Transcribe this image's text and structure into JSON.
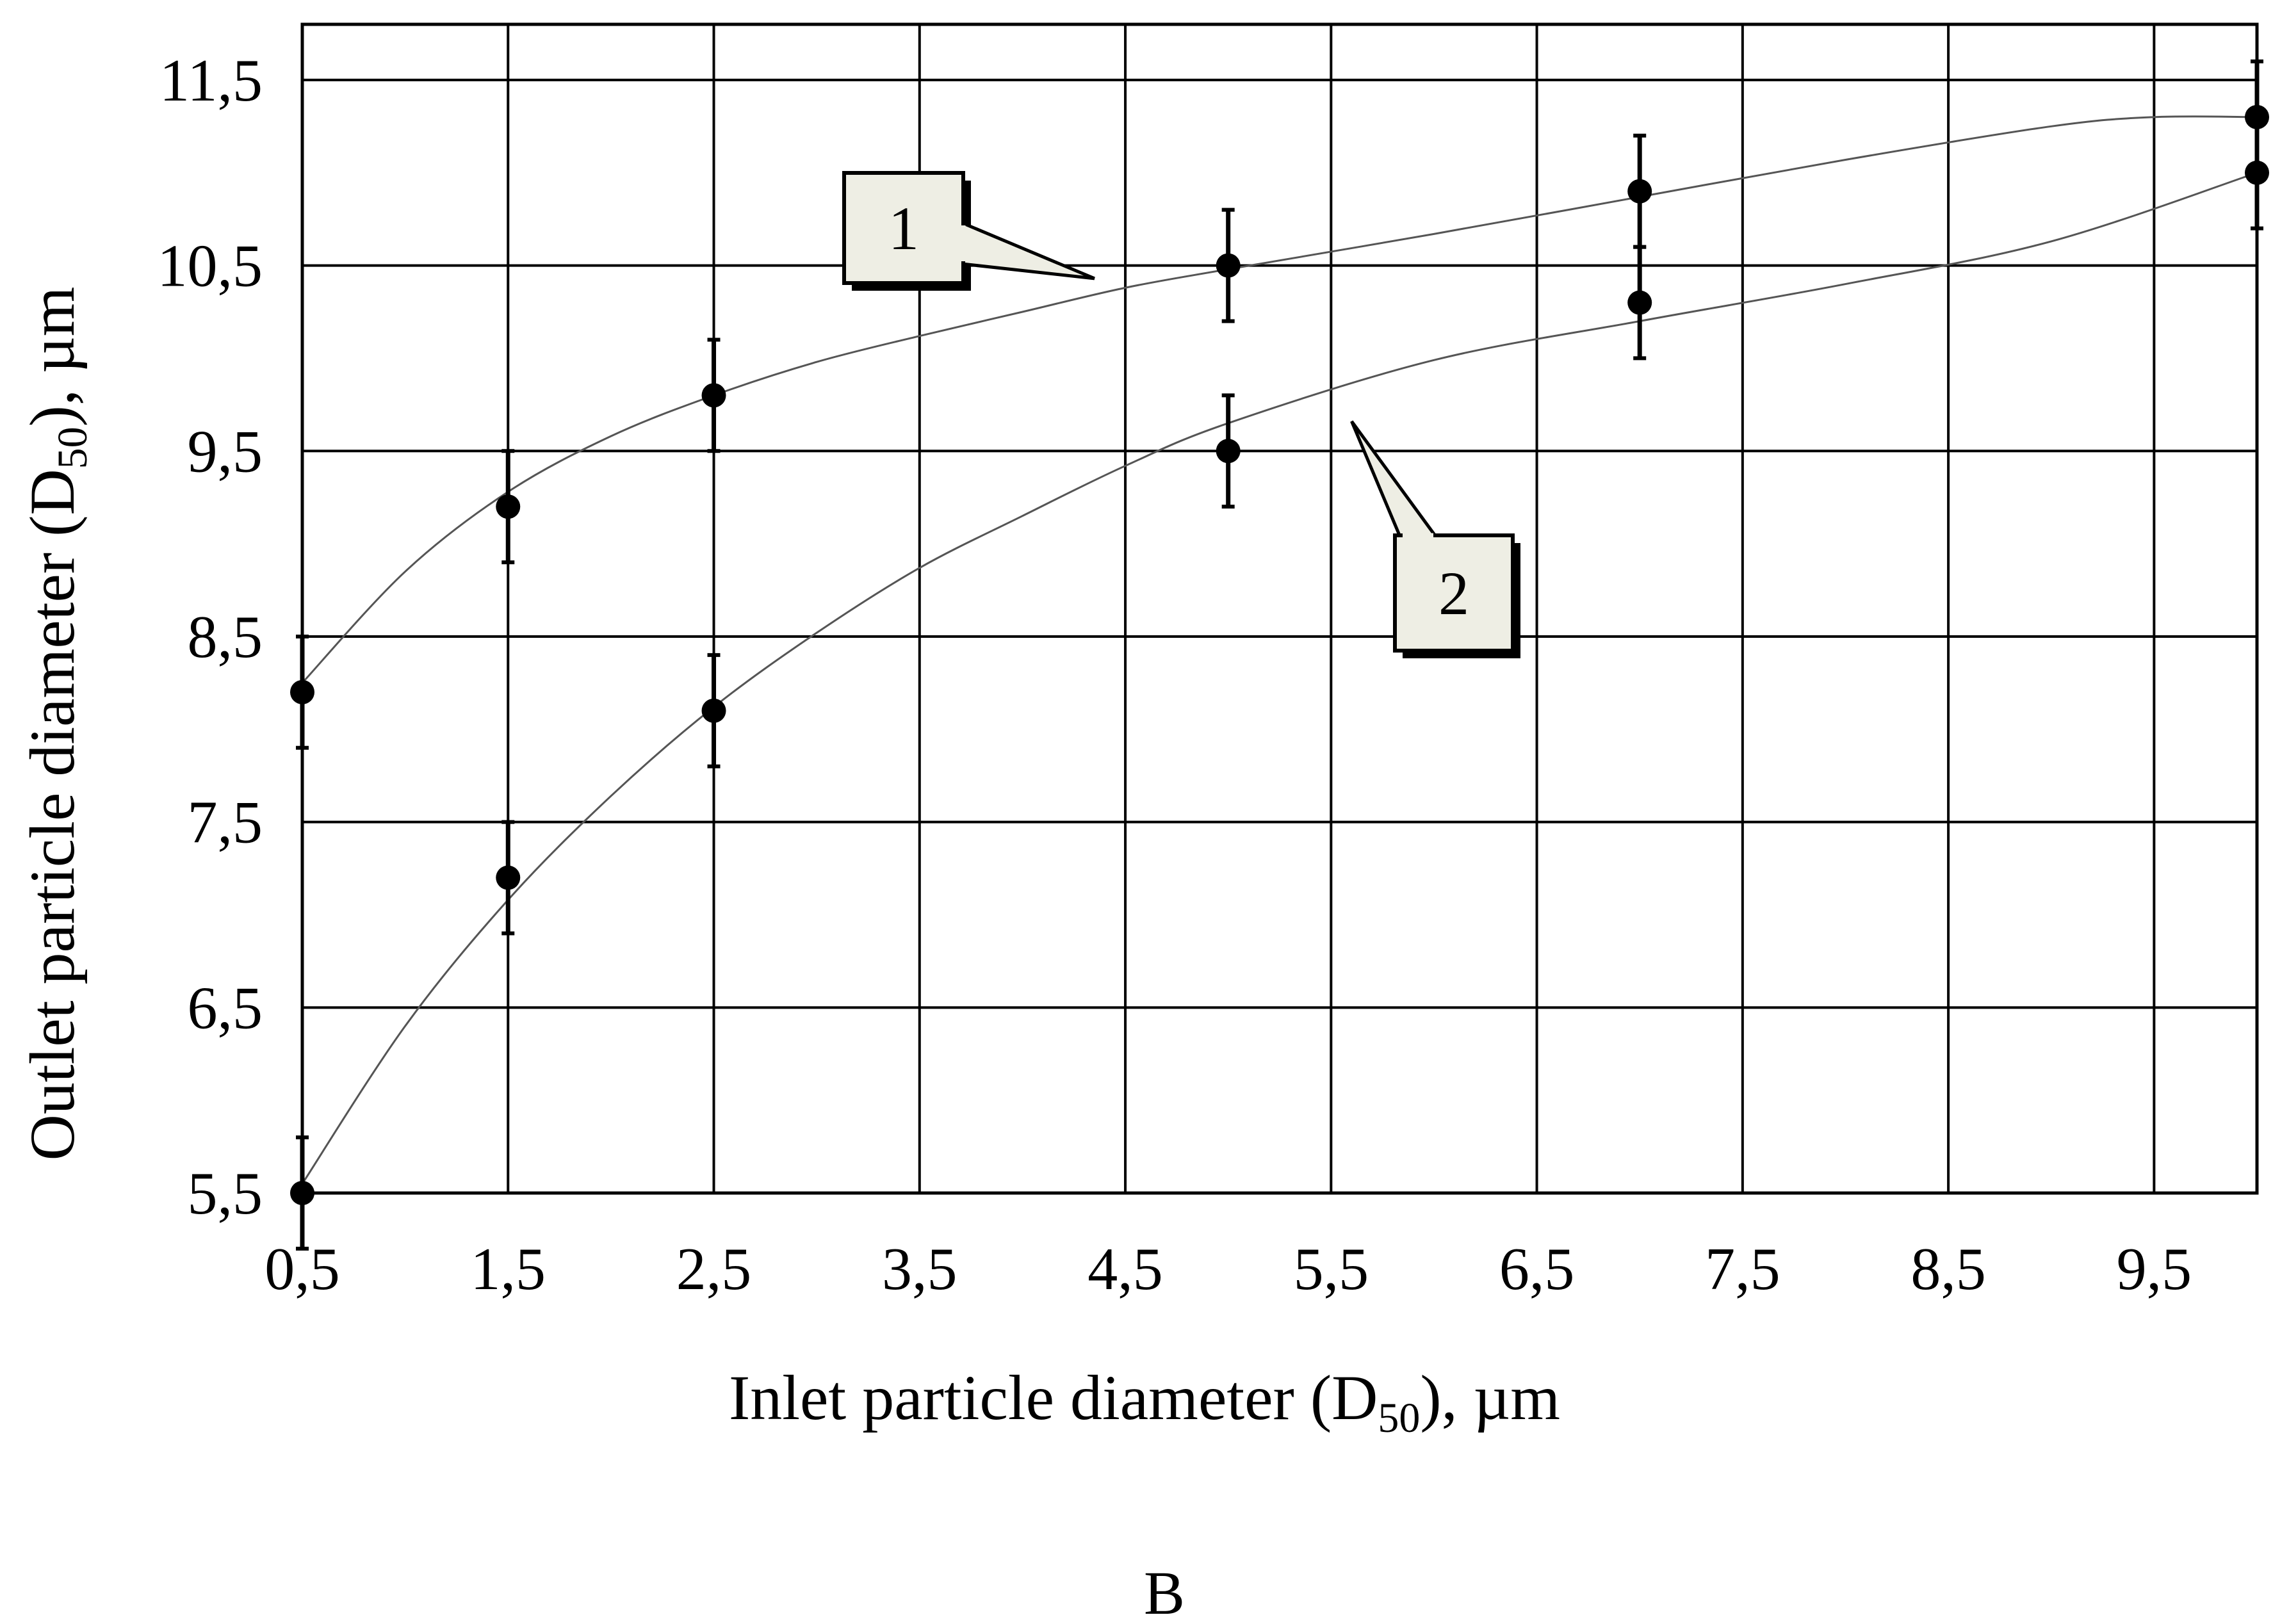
{
  "chart_data": {
    "type": "scatter",
    "xlabel": {
      "main": "Inlet particle diameter (D",
      "sub": "50",
      "tail": "), µm"
    },
    "ylabel": {
      "main": "Outlet particle diameter (D",
      "sub": "50",
      "tail": "), µm"
    },
    "x_ticks": [
      "0,5",
      "1,5",
      "2,5",
      "3,5",
      "4,5",
      "5,5",
      "6,5",
      "7,5",
      "8,5",
      "9,5"
    ],
    "y_ticks": [
      "5,5",
      "6,5",
      "7,5",
      "8,5",
      "9,5",
      "10,5",
      "11,5"
    ],
    "xlim": [
      0.5,
      10
    ],
    "ylim": [
      5.5,
      11.8
    ],
    "grid": true,
    "series": [
      {
        "name": "1",
        "points": [
          {
            "x": 0.5,
            "y": 8.2,
            "err": 0.3
          },
          {
            "x": 1.5,
            "y": 9.2,
            "err": 0.3
          },
          {
            "x": 2.5,
            "y": 9.8,
            "err": 0.3
          },
          {
            "x": 5.0,
            "y": 10.5,
            "err": 0.3
          },
          {
            "x": 7.0,
            "y": 10.9,
            "err": 0.3
          },
          {
            "x": 10.0,
            "y": 11.3,
            "err": 0.3
          }
        ],
        "fit": [
          [
            0.5,
            8.25
          ],
          [
            1.0,
            8.85
          ],
          [
            1.5,
            9.28
          ],
          [
            2.0,
            9.58
          ],
          [
            2.5,
            9.8
          ],
          [
            3.0,
            9.98
          ],
          [
            3.5,
            10.12
          ],
          [
            4.0,
            10.25
          ],
          [
            4.5,
            10.38
          ],
          [
            5.0,
            10.48
          ],
          [
            6.0,
            10.67
          ],
          [
            7.0,
            10.87
          ],
          [
            8.0,
            11.07
          ],
          [
            9.0,
            11.25
          ],
          [
            9.5,
            11.3
          ],
          [
            10.0,
            11.3
          ]
        ]
      },
      {
        "name": "2",
        "points": [
          {
            "x": 0.5,
            "y": 5.5,
            "err": 0.3
          },
          {
            "x": 1.5,
            "y": 7.2,
            "err": 0.3
          },
          {
            "x": 2.5,
            "y": 8.1,
            "err": 0.3
          },
          {
            "x": 5.0,
            "y": 9.5,
            "err": 0.3
          },
          {
            "x": 7.0,
            "y": 10.3,
            "err": 0.3
          },
          {
            "x": 10.0,
            "y": 11.0,
            "err": 0.3
          }
        ],
        "fit": [
          [
            0.5,
            5.55
          ],
          [
            1.0,
            6.4
          ],
          [
            1.5,
            7.08
          ],
          [
            2.0,
            7.64
          ],
          [
            2.5,
            8.12
          ],
          [
            3.0,
            8.52
          ],
          [
            3.5,
            8.87
          ],
          [
            4.0,
            9.15
          ],
          [
            4.5,
            9.42
          ],
          [
            5.0,
            9.65
          ],
          [
            6.0,
            9.99
          ],
          [
            7.0,
            10.2
          ],
          [
            8.0,
            10.4
          ],
          [
            9.0,
            10.63
          ],
          [
            10.0,
            11.0
          ]
        ]
      }
    ],
    "annotations": [
      {
        "label": "1",
        "target_x": 4.35,
        "target_y": 10.43
      },
      {
        "label": "2",
        "target_x": 5.6,
        "target_y": 9.66
      }
    ]
  },
  "panel_label": "B",
  "colors": {
    "line": "#000000",
    "callout_fill": "#eeeee4",
    "fit": "#555555"
  }
}
